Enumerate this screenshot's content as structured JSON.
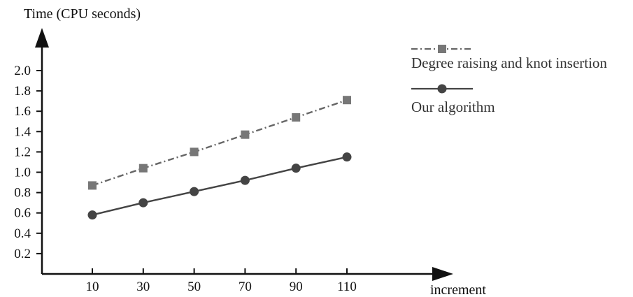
{
  "chart_data": {
    "type": "line",
    "ylabel": "Time (CPU seconds)",
    "xlabel": "increment",
    "x": [
      10,
      30,
      50,
      70,
      90,
      110
    ],
    "y_ticks": [
      "0.2",
      "0.4",
      "0.6",
      "0.8",
      "1.0",
      "1.2",
      "1.4",
      "1.6",
      "1.8",
      "2.0"
    ],
    "ylim": [
      0,
      2.0
    ],
    "grid": false,
    "legend_position": "top-right",
    "series": [
      {
        "name": "Degree raising and knot insertion",
        "values": [
          0.87,
          1.04,
          1.2,
          1.37,
          1.54,
          1.71
        ],
        "line_style": "dash-dot",
        "marker": "square",
        "color": "#666666"
      },
      {
        "name": "Our algorithm",
        "values": [
          0.58,
          0.7,
          0.81,
          0.92,
          1.04,
          1.15
        ],
        "line_style": "solid",
        "marker": "circle",
        "color": "#444444"
      }
    ]
  }
}
